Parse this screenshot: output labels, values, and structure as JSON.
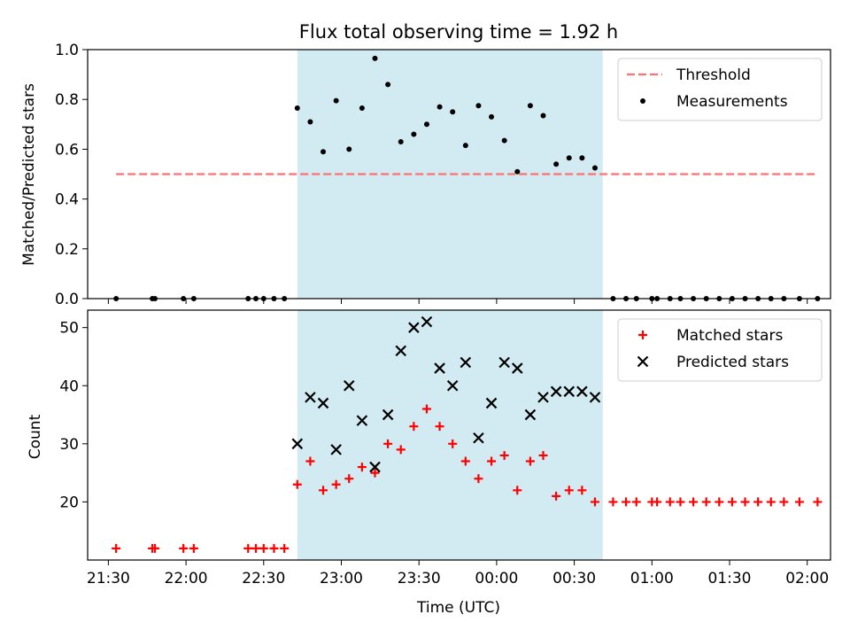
{
  "chart_data": {
    "title": "Flux total observing time = 1.92 h",
    "xlabel": "Time (UTC)",
    "type": "scatter",
    "x_ticks": [
      "21:30",
      "22:00",
      "22:30",
      "23:00",
      "23:30",
      "00:00",
      "00:30",
      "01:00",
      "01:30",
      "02:00"
    ],
    "x_range": [
      "21:22",
      "02:09"
    ],
    "observing_window": {
      "start": "22:43",
      "end": "00:41",
      "color": "#add8e6"
    },
    "panels": [
      {
        "ylabel": "Matched/Predicted stars",
        "ylim": [
          0,
          1.0
        ],
        "y_ticks": [
          "0.0",
          "0.2",
          "0.4",
          "0.6",
          "0.8",
          "1.0"
        ],
        "legend_position": "top-right",
        "threshold": {
          "name": "Threshold",
          "value": 0.5,
          "x_range": [
            "21:33",
            "02:03"
          ],
          "color": "#ff7070"
        },
        "series": [
          {
            "name": "Measurements",
            "color": "#000000",
            "marker": "dot",
            "points": [
              [
                "21:33",
                0.0
              ],
              [
                "21:47",
                0.0
              ],
              [
                "21:48",
                0.0
              ],
              [
                "21:59",
                0.0
              ],
              [
                "22:03",
                0.0
              ],
              [
                "22:24",
                0.0
              ],
              [
                "22:27",
                0.0
              ],
              [
                "22:30",
                0.0
              ],
              [
                "22:34",
                0.0
              ],
              [
                "22:38",
                0.0
              ],
              [
                "22:43",
                0.765
              ],
              [
                "22:48",
                0.71
              ],
              [
                "22:53",
                0.59
              ],
              [
                "22:58",
                0.795
              ],
              [
                "23:03",
                0.6
              ],
              [
                "23:08",
                0.765
              ],
              [
                "23:13",
                0.965
              ],
              [
                "23:18",
                0.86
              ],
              [
                "23:23",
                0.63
              ],
              [
                "23:28",
                0.66
              ],
              [
                "23:33",
                0.7
              ],
              [
                "23:38",
                0.77
              ],
              [
                "23:43",
                0.75
              ],
              [
                "23:48",
                0.615
              ],
              [
                "23:53",
                0.775
              ],
              [
                "23:58",
                0.73
              ],
              [
                "00:03",
                0.635
              ],
              [
                "00:08",
                0.51
              ],
              [
                "00:13",
                0.775
              ],
              [
                "00:18",
                0.735
              ],
              [
                "00:23",
                0.54
              ],
              [
                "00:28",
                0.565
              ],
              [
                "00:33",
                0.565
              ],
              [
                "00:38",
                0.525
              ],
              [
                "00:45",
                0.0
              ],
              [
                "00:50",
                0.0
              ],
              [
                "00:54",
                0.0
              ],
              [
                "01:00",
                0.0
              ],
              [
                "01:02",
                0.0
              ],
              [
                "01:07",
                0.0
              ],
              [
                "01:11",
                0.0
              ],
              [
                "01:16",
                0.0
              ],
              [
                "01:21",
                0.0
              ],
              [
                "01:26",
                0.0
              ],
              [
                "01:31",
                0.0
              ],
              [
                "01:36",
                0.0
              ],
              [
                "01:41",
                0.0
              ],
              [
                "01:46",
                0.0
              ],
              [
                "01:51",
                0.0
              ],
              [
                "01:57",
                0.0
              ],
              [
                "02:04",
                0.0
              ]
            ]
          }
        ]
      },
      {
        "ylabel": "Count",
        "ylim": [
          10,
          53
        ],
        "y_ticks": [
          "20",
          "30",
          "40",
          "50"
        ],
        "legend_position": "top-right",
        "series": [
          {
            "name": "Matched stars",
            "color": "#ff0000",
            "marker": "plus",
            "points": [
              [
                "21:33",
                12
              ],
              [
                "21:47",
                12
              ],
              [
                "21:48",
                12
              ],
              [
                "21:59",
                12
              ],
              [
                "22:03",
                12
              ],
              [
                "22:24",
                12
              ],
              [
                "22:27",
                12
              ],
              [
                "22:30",
                12
              ],
              [
                "22:34",
                12
              ],
              [
                "22:38",
                12
              ],
              [
                "22:43",
                23
              ],
              [
                "22:48",
                27
              ],
              [
                "22:53",
                22
              ],
              [
                "22:58",
                23
              ],
              [
                "23:03",
                24
              ],
              [
                "23:08",
                26
              ],
              [
                "23:13",
                25
              ],
              [
                "23:18",
                30
              ],
              [
                "23:23",
                29
              ],
              [
                "23:28",
                33
              ],
              [
                "23:33",
                36
              ],
              [
                "23:38",
                33
              ],
              [
                "23:43",
                30
              ],
              [
                "23:48",
                27
              ],
              [
                "23:53",
                24
              ],
              [
                "23:58",
                27
              ],
              [
                "00:03",
                28
              ],
              [
                "00:08",
                22
              ],
              [
                "00:13",
                27
              ],
              [
                "00:18",
                28
              ],
              [
                "00:23",
                21
              ],
              [
                "00:28",
                22
              ],
              [
                "00:33",
                22
              ],
              [
                "00:38",
                20
              ],
              [
                "00:45",
                20
              ],
              [
                "00:50",
                20
              ],
              [
                "00:54",
                20
              ],
              [
                "01:00",
                20
              ],
              [
                "01:02",
                20
              ],
              [
                "01:07",
                20
              ],
              [
                "01:11",
                20
              ],
              [
                "01:16",
                20
              ],
              [
                "01:21",
                20
              ],
              [
                "01:26",
                20
              ],
              [
                "01:31",
                20
              ],
              [
                "01:36",
                20
              ],
              [
                "01:41",
                20
              ],
              [
                "01:46",
                20
              ],
              [
                "01:51",
                20
              ],
              [
                "01:57",
                20
              ],
              [
                "02:04",
                20
              ]
            ]
          },
          {
            "name": "Predicted stars",
            "color": "#000000",
            "marker": "x",
            "points": [
              [
                "22:43",
                30
              ],
              [
                "22:48",
                38
              ],
              [
                "22:53",
                37
              ],
              [
                "22:58",
                29
              ],
              [
                "23:03",
                40
              ],
              [
                "23:08",
                34
              ],
              [
                "23:13",
                26
              ],
              [
                "23:18",
                35
              ],
              [
                "23:23",
                46
              ],
              [
                "23:28",
                50
              ],
              [
                "23:33",
                51
              ],
              [
                "23:38",
                43
              ],
              [
                "23:43",
                40
              ],
              [
                "23:48",
                44
              ],
              [
                "23:53",
                31
              ],
              [
                "23:58",
                37
              ],
              [
                "00:03",
                44
              ],
              [
                "00:08",
                43
              ],
              [
                "00:13",
                35
              ],
              [
                "00:18",
                38
              ],
              [
                "00:23",
                39
              ],
              [
                "00:28",
                39
              ],
              [
                "00:33",
                39
              ],
              [
                "00:38",
                38
              ]
            ]
          }
        ]
      }
    ]
  }
}
